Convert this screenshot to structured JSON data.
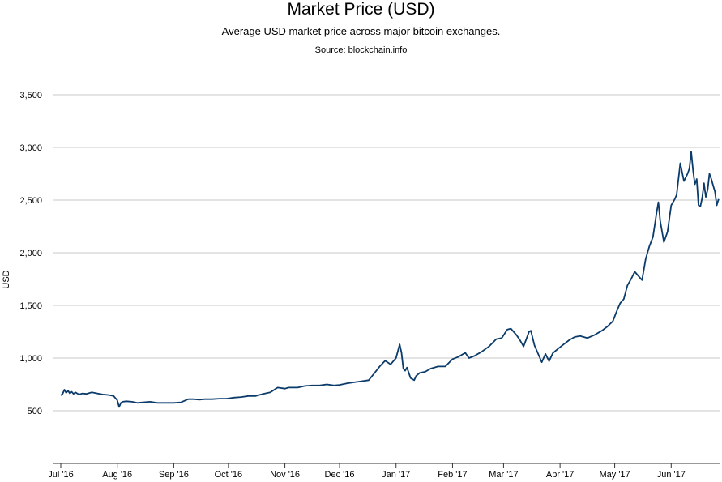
{
  "colors": {
    "line": "#0b3b6b",
    "grid": "#c8c8c8",
    "axis": "#333333"
  },
  "chart_data": {
    "type": "line",
    "title": "Market Price (USD)",
    "subtitle": "Average USD market price across major bitcoin exchanges.",
    "source": "Source: blockchain.info",
    "ylabel": "USD",
    "xlabel": "",
    "ylim": [
      0,
      3500
    ],
    "yticks": [
      500,
      1000,
      1500,
      2000,
      2500,
      3000,
      3500
    ],
    "ytick_labels": [
      "500",
      "1,000",
      "1,500",
      "2,000",
      "2,500",
      "3,000",
      "3,500"
    ],
    "xticks": [
      "2016-07-01",
      "2016-08-01",
      "2016-09-01",
      "2016-10-01",
      "2016-11-01",
      "2016-12-01",
      "2017-01-01",
      "2017-02-01",
      "2017-03-01",
      "2017-04-01",
      "2017-05-01",
      "2017-06-01"
    ],
    "xtick_labels": [
      "Jul '16",
      "Aug '16",
      "Sep '16",
      "Oct '16",
      "Nov '16",
      "Dec '16",
      "Jan '17",
      "Feb '17",
      "Mar '17",
      "Apr '17",
      "May '17",
      "Jun '17"
    ],
    "xlim": [
      "2016-06-27",
      "2017-06-28"
    ],
    "grid": true,
    "series": [
      {
        "x": [
          "2016-07-01",
          "2016-07-02",
          "2016-07-03",
          "2016-07-04",
          "2016-07-05",
          "2016-07-06",
          "2016-07-07",
          "2016-07-08",
          "2016-07-09",
          "2016-07-11",
          "2016-07-13",
          "2016-07-15",
          "2016-07-18",
          "2016-07-21",
          "2016-07-24",
          "2016-07-27",
          "2016-07-30",
          "2016-08-01",
          "2016-08-02",
          "2016-08-03",
          "2016-08-04",
          "2016-08-06",
          "2016-08-09",
          "2016-08-12",
          "2016-08-15",
          "2016-08-19",
          "2016-08-23",
          "2016-08-27",
          "2016-09-01",
          "2016-09-05",
          "2016-09-09",
          "2016-09-12",
          "2016-09-15",
          "2016-09-18",
          "2016-09-22",
          "2016-09-26",
          "2016-09-30",
          "2016-10-04",
          "2016-10-08",
          "2016-10-12",
          "2016-10-16",
          "2016-10-20",
          "2016-10-24",
          "2016-10-28",
          "2016-11-01",
          "2016-11-03",
          "2016-11-05",
          "2016-11-08",
          "2016-11-12",
          "2016-11-16",
          "2016-11-20",
          "2016-11-24",
          "2016-11-28",
          "2016-12-01",
          "2016-12-05",
          "2016-12-09",
          "2016-12-13",
          "2016-12-17",
          "2016-12-20",
          "2016-12-23",
          "2016-12-26",
          "2016-12-29",
          "2017-01-01",
          "2017-01-03",
          "2017-01-04",
          "2017-01-05",
          "2017-01-06",
          "2017-01-07",
          "2017-01-09",
          "2017-01-11",
          "2017-01-12",
          "2017-01-14",
          "2017-01-17",
          "2017-01-20",
          "2017-01-24",
          "2017-01-28",
          "2017-02-01",
          "2017-02-04",
          "2017-02-08",
          "2017-02-10",
          "2017-02-13",
          "2017-02-17",
          "2017-02-21",
          "2017-02-25",
          "2017-02-28",
          "2017-03-03",
          "2017-03-05",
          "2017-03-08",
          "2017-03-10",
          "2017-03-12",
          "2017-03-15",
          "2017-03-16",
          "2017-03-18",
          "2017-03-20",
          "2017-03-22",
          "2017-03-24",
          "2017-03-26",
          "2017-03-28",
          "2017-03-31",
          "2017-04-03",
          "2017-04-06",
          "2017-04-09",
          "2017-04-12",
          "2017-04-16",
          "2017-04-20",
          "2017-04-24",
          "2017-04-27",
          "2017-04-30",
          "2017-05-02",
          "2017-05-04",
          "2017-05-06",
          "2017-05-08",
          "2017-05-10",
          "2017-05-12",
          "2017-05-14",
          "2017-05-16",
          "2017-05-18",
          "2017-05-20",
          "2017-05-22",
          "2017-05-24",
          "2017-05-25",
          "2017-05-26",
          "2017-05-28",
          "2017-05-30",
          "2017-06-01",
          "2017-06-03",
          "2017-06-04",
          "2017-06-06",
          "2017-06-08",
          "2017-06-10",
          "2017-06-11",
          "2017-06-12",
          "2017-06-13",
          "2017-06-14",
          "2017-06-15",
          "2017-06-16",
          "2017-06-17",
          "2017-06-18",
          "2017-06-19",
          "2017-06-20",
          "2017-06-21",
          "2017-06-22",
          "2017-06-23",
          "2017-06-24",
          "2017-06-25",
          "2017-06-26",
          "2017-06-27"
        ],
        "values": [
          645,
          660,
          700,
          670,
          690,
          665,
          680,
          660,
          675,
          655,
          665,
          660,
          675,
          665,
          655,
          650,
          640,
          600,
          535,
          575,
          585,
          590,
          585,
          575,
          580,
          585,
          575,
          575,
          575,
          580,
          610,
          610,
          605,
          610,
          610,
          615,
          615,
          625,
          630,
          640,
          640,
          660,
          675,
          720,
          710,
          720,
          720,
          720,
          735,
          740,
          740,
          750,
          740,
          745,
          760,
          770,
          780,
          790,
          855,
          920,
          975,
          940,
          1000,
          1130,
          1050,
          900,
          880,
          910,
          810,
          790,
          830,
          860,
          870,
          900,
          920,
          920,
          990,
          1010,
          1050,
          1000,
          1020,
          1060,
          1110,
          1180,
          1190,
          1270,
          1280,
          1220,
          1170,
          1110,
          1250,
          1260,
          1120,
          1040,
          960,
          1040,
          970,
          1045,
          1090,
          1130,
          1170,
          1200,
          1210,
          1190,
          1220,
          1260,
          1300,
          1350,
          1440,
          1520,
          1560,
          1690,
          1750,
          1820,
          1780,
          1740,
          1940,
          2060,
          2150,
          2380,
          2480,
          2300,
          2100,
          2200,
          2450,
          2510,
          2550,
          2850,
          2680,
          2750,
          2800,
          2960,
          2780,
          2650,
          2700,
          2450,
          2440,
          2520,
          2660,
          2530,
          2600,
          2750,
          2700,
          2640,
          2580,
          2450,
          2510
        ]
      }
    ]
  }
}
